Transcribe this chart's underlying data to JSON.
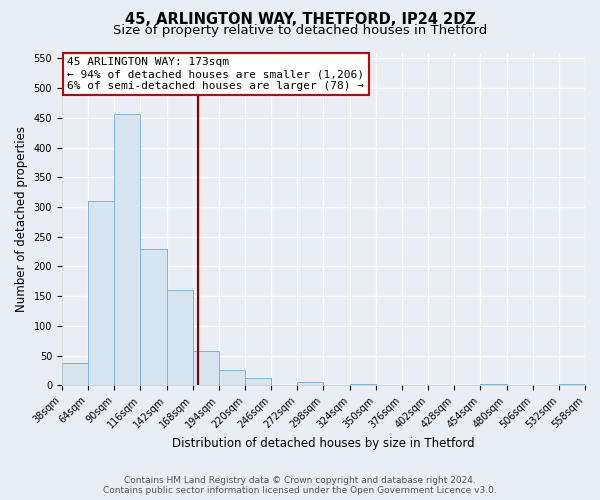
{
  "title": "45, ARLINGTON WAY, THETFORD, IP24 2DZ",
  "subtitle": "Size of property relative to detached houses in Thetford",
  "xlabel": "Distribution of detached houses by size in Thetford",
  "ylabel": "Number of detached properties",
  "bin_edges": [
    38,
    64,
    90,
    116,
    142,
    168,
    194,
    220,
    246,
    272,
    298,
    324,
    350,
    376,
    402,
    428,
    454,
    480,
    506,
    532,
    558
  ],
  "bar_heights": [
    38,
    310,
    457,
    230,
    160,
    57,
    26,
    12,
    0,
    5,
    0,
    3,
    0,
    0,
    0,
    0,
    3,
    0,
    0,
    3
  ],
  "bar_color": "#d6e4f0",
  "bar_edge_color": "#7eb3d8",
  "property_size": 173,
  "vline_color": "#8b0000",
  "annotation_line1": "45 ARLINGTON WAY: 173sqm",
  "annotation_line2": "← 94% of detached houses are smaller (1,206)",
  "annotation_line3": "6% of semi-detached houses are larger (78) →",
  "annotation_box_color": "white",
  "annotation_box_edge": "#cc0000",
  "ylim": [
    0,
    560
  ],
  "yticks": [
    0,
    50,
    100,
    150,
    200,
    250,
    300,
    350,
    400,
    450,
    500,
    550
  ],
  "footer_line1": "Contains HM Land Registry data © Crown copyright and database right 2024.",
  "footer_line2": "Contains public sector information licensed under the Open Government Licence v3.0.",
  "background_color": "#e8eef4",
  "grid_color": "#ffffff",
  "title_fontsize": 10.5,
  "subtitle_fontsize": 9.5,
  "axis_label_fontsize": 8.5,
  "tick_fontsize": 7,
  "annotation_fontsize": 8,
  "footer_fontsize": 6.5
}
